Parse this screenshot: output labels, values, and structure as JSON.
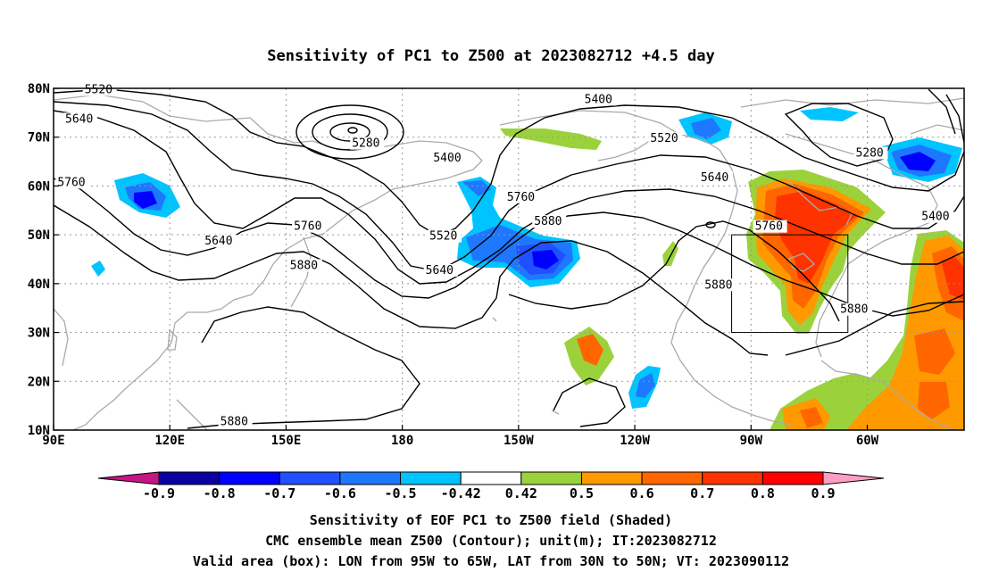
{
  "title": "Sensitivity of PC1 to Z500 at 2023082712 +4.5 day",
  "lat_ticks": [
    {
      "value": 80,
      "label": "80N"
    },
    {
      "value": 70,
      "label": "70N"
    },
    {
      "value": 60,
      "label": "60N"
    },
    {
      "value": 50,
      "label": "50N"
    },
    {
      "value": 40,
      "label": "40N"
    },
    {
      "value": 30,
      "label": "30N"
    },
    {
      "value": 20,
      "label": "20N"
    },
    {
      "value": 10,
      "label": "10N"
    }
  ],
  "lon_ticks": [
    {
      "value": 90,
      "label": "90E"
    },
    {
      "value": 120,
      "label": "120E"
    },
    {
      "value": 150,
      "label": "150E"
    },
    {
      "value": 180,
      "label": "180"
    },
    {
      "value": 210,
      "label": "150W"
    },
    {
      "value": 240,
      "label": "120W"
    },
    {
      "value": 270,
      "label": "90W"
    },
    {
      "value": 300,
      "label": "60W"
    }
  ],
  "map_extent": {
    "lon_min": 90,
    "lon_max": 325,
    "lat_min": 10,
    "lat_max": 80
  },
  "valid_box": {
    "lon_min": 265,
    "lon_max": 295,
    "lat_min": 30,
    "lat_max": 50
  },
  "contour_labels": [
    {
      "text": "5520",
      "lon": 98,
      "lat": 79
    },
    {
      "text": "5640",
      "lon": 93,
      "lat": 73
    },
    {
      "text": "5760",
      "lon": 91,
      "lat": 60
    },
    {
      "text": "5640",
      "lon": 129,
      "lat": 48
    },
    {
      "text": "5760",
      "lon": 152,
      "lat": 51
    },
    {
      "text": "5880",
      "lon": 151,
      "lat": 43
    },
    {
      "text": "5280",
      "lon": 167,
      "lat": 68
    },
    {
      "text": "5400",
      "lon": 188,
      "lat": 65
    },
    {
      "text": "5520",
      "lon": 187,
      "lat": 49
    },
    {
      "text": "5640",
      "lon": 186,
      "lat": 42
    },
    {
      "text": "5880",
      "lon": 214,
      "lat": 52
    },
    {
      "text": "5760",
      "lon": 207,
      "lat": 57
    },
    {
      "text": "5400",
      "lon": 227,
      "lat": 77
    },
    {
      "text": "5520",
      "lon": 244,
      "lat": 69
    },
    {
      "text": "5640",
      "lon": 257,
      "lat": 61
    },
    {
      "text": "5760",
      "lon": 271,
      "lat": 51
    },
    {
      "text": "5880",
      "lon": 258,
      "lat": 39
    },
    {
      "text": "5880",
      "lon": 293,
      "lat": 34
    },
    {
      "text": "5280",
      "lon": 297,
      "lat": 66
    },
    {
      "text": "5400",
      "lon": 314,
      "lat": 53
    },
    {
      "text": "5880",
      "lon": 133,
      "lat": 11
    }
  ],
  "colorbar": {
    "labels": [
      "-0.9",
      "-0.8",
      "-0.7",
      "-0.6",
      "-0.5",
      "-0.42",
      "0.42",
      "0.5",
      "0.6",
      "0.7",
      "0.8",
      "0.9"
    ],
    "colors": [
      "#0a00a0",
      "#0000ff",
      "#2050ff",
      "#1e78ff",
      "#00c4ff",
      "#ffffff",
      "#9bd23c",
      "#ff9900",
      "#ff6600",
      "#ff3300",
      "#ff0000"
    ],
    "low_color": "#c71585",
    "high_color": "#ff9ec4"
  },
  "footer": {
    "line1": "Sensitivity of EOF PC1 to Z500 field (Shaded)",
    "line2": "CMC ensemble mean Z500 (Contour); unit(m); IT:2023082712",
    "line3": "Valid area (box): LON from 95W to 65W, LAT from 30N to 50N; VT: 2023090112"
  }
}
